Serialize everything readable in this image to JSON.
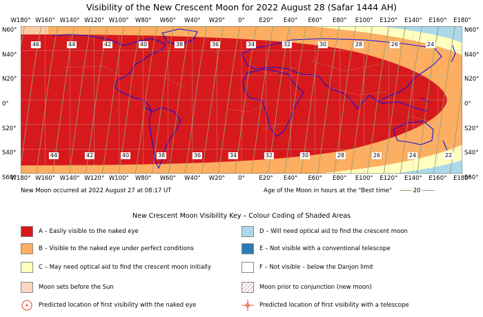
{
  "title": "Visibility of the New Crescent Moon for 2022 August 28 (Safar 1444 AH)",
  "longitude_labels": [
    "W180°",
    "W160°",
    "W140°",
    "W120°",
    "W100°",
    "W80°",
    "W60°",
    "W40°",
    "W20°",
    "0°",
    "E20°",
    "E40°",
    "E60°",
    "E80°",
    "E100°",
    "E120°",
    "E140°",
    "E160°",
    "E180°"
  ],
  "latitude_labels": [
    "N60°",
    "N40°",
    "N20°",
    "0°",
    "S20°",
    "S40°",
    "S60°"
  ],
  "moon_age_labels_north": [
    "46",
    "44",
    "42",
    "40",
    "38",
    "36",
    "34",
    "32",
    "30",
    "28",
    "26",
    "24"
  ],
  "moon_age_labels_south": [
    "44",
    "42",
    "40",
    "38",
    "36",
    "34",
    "32",
    "30",
    "28",
    "26",
    "24",
    "22"
  ],
  "new_moon_text": "New Moon occurred at 2022 August 27 at 08:17 UT",
  "age_text": "Age of the Moon in hours at the \"Best time\"",
  "age_legend_value": "20",
  "key_title": "New Crescent Moon Visibility Key – Colour Coding of Shaded Areas",
  "key": {
    "a": "A – Easily visible to the naked eye",
    "b": "B – Visible to the naked eye under perfect conditions",
    "c": "C – May need optical aid to find the crescent moon initially",
    "sets": "Moon sets before the Sun",
    "naked_eye_point": "Predicted location of first visibility with the naked eye",
    "d": "D – Will need optical aid to find the crescent moon",
    "e": "E – Not visible with a conventional telescope",
    "f": "F – Not visible – below the Danjon limit",
    "prior": "Moon prior to conjunction (new moon)",
    "telescope_point": "Predicted location of first visibility with a telescope"
  },
  "colors": {
    "zone_a": "#d7191c",
    "zone_b": "#fdae61",
    "zone_c": "#ffffbf",
    "zone_d": "#abd9e9",
    "zone_e": "#2c7bb6",
    "zone_f": "#ffffff",
    "moon_sets": "#fcd5c0",
    "coast": "#1010e0",
    "age_curve": "#9a9a70"
  }
}
